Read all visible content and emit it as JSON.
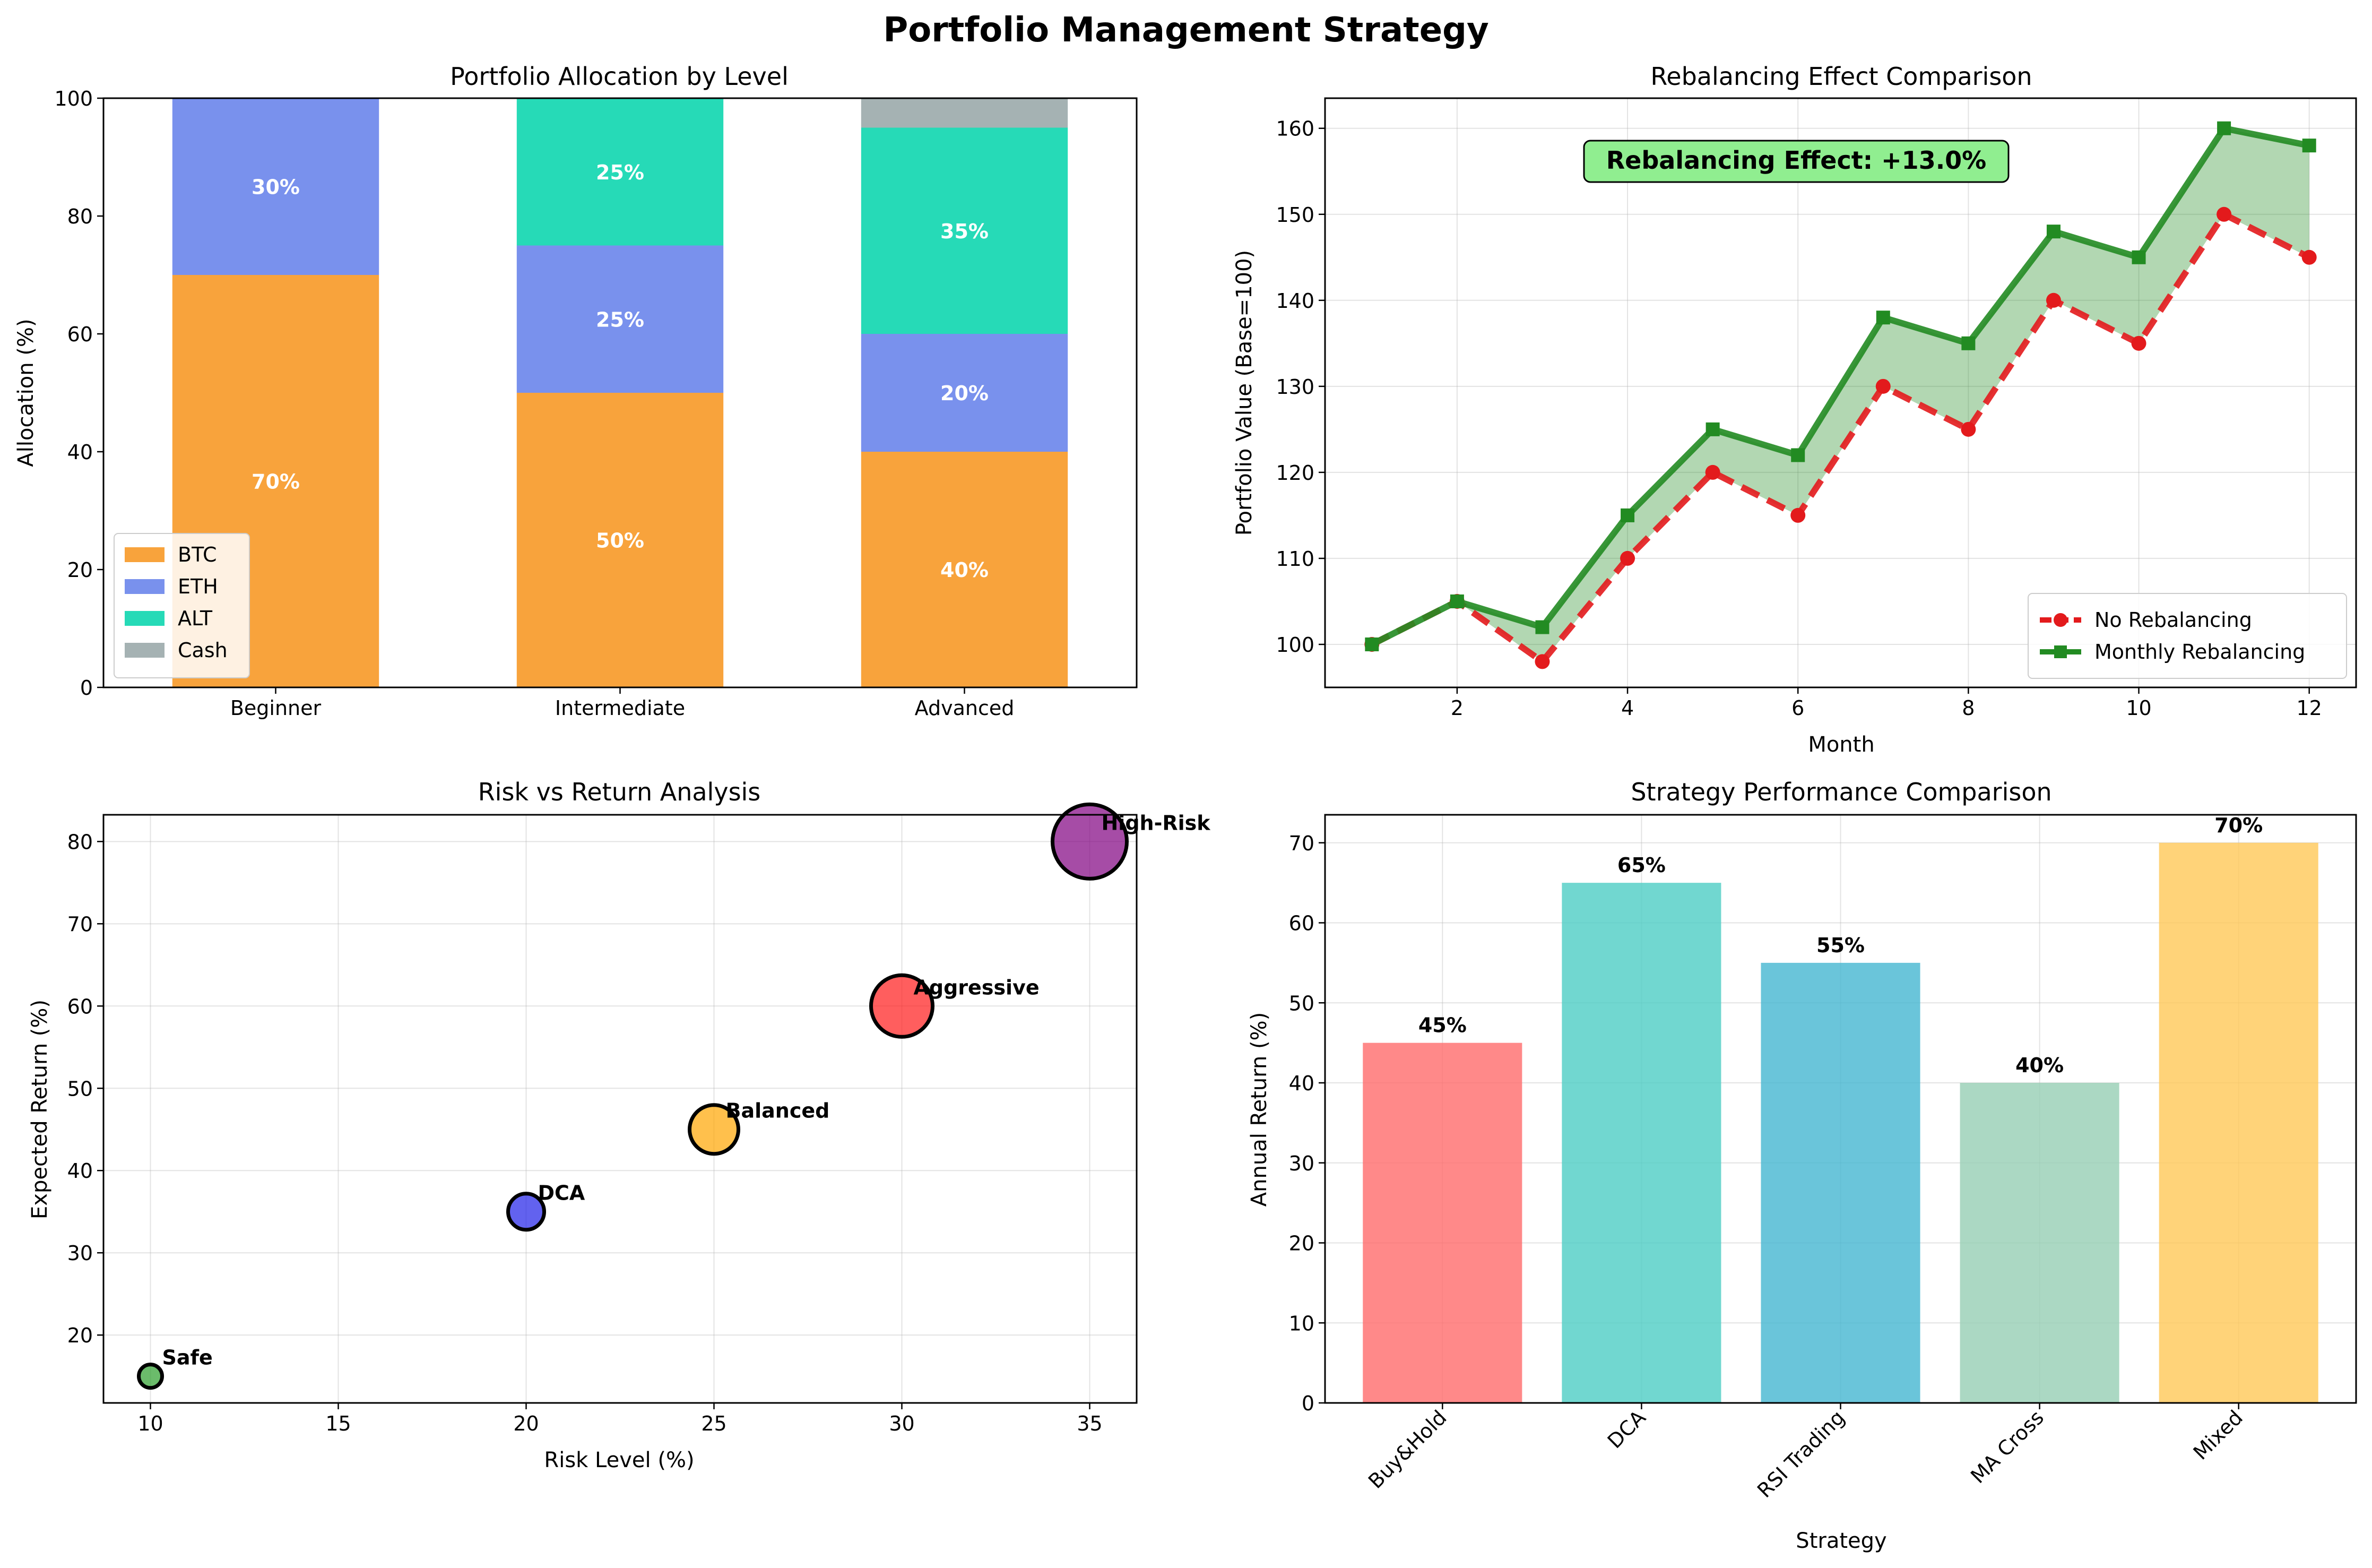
{
  "figure": {
    "title": "Portfolio Management Strategy"
  },
  "chart_data": [
    {
      "id": "allocation",
      "type": "bar",
      "stacked": true,
      "title": "Portfolio Allocation by Level",
      "xlabel": "",
      "ylabel": "Allocation (%)",
      "ylim": [
        0,
        100
      ],
      "yticks": [
        0,
        20,
        40,
        60,
        80,
        100
      ],
      "categories": [
        "Beginner",
        "Intermediate",
        "Advanced"
      ],
      "series": [
        {
          "name": "BTC",
          "color": "#f7931a",
          "values": [
            70,
            50,
            40
          ]
        },
        {
          "name": "ETH",
          "color": "#627eea",
          "values": [
            30,
            25,
            20
          ]
        },
        {
          "name": "ALT",
          "color": "#00d4aa",
          "values": [
            0,
            25,
            35
          ]
        },
        {
          "name": "Cash",
          "color": "#95a5a6",
          "values": [
            0,
            0,
            5
          ]
        }
      ],
      "data_labels": [
        {
          "category": "Beginner",
          "series": "BTC",
          "text": "70%"
        },
        {
          "category": "Beginner",
          "series": "ETH",
          "text": "30%"
        },
        {
          "category": "Intermediate",
          "series": "BTC",
          "text": "50%"
        },
        {
          "category": "Intermediate",
          "series": "ETH",
          "text": "25%"
        },
        {
          "category": "Intermediate",
          "series": "ALT",
          "text": "25%"
        },
        {
          "category": "Advanced",
          "series": "BTC",
          "text": "40%"
        },
        {
          "category": "Advanced",
          "series": "ETH",
          "text": "20%"
        },
        {
          "category": "Advanced",
          "series": "ALT",
          "text": "35%"
        }
      ],
      "legend": {
        "placement": "lower-left",
        "entries": [
          "BTC",
          "ETH",
          "ALT",
          "Cash"
        ]
      },
      "grid": false
    },
    {
      "id": "rebalancing",
      "type": "line",
      "title": "Rebalancing Effect Comparison",
      "xlabel": "Month",
      "ylabel": "Portfolio Value (Base=100)",
      "xlim": [
        0.45,
        12.55
      ],
      "ylim": [
        95,
        163.5
      ],
      "xticks": [
        2,
        4,
        6,
        8,
        10,
        12
      ],
      "yticks": [
        100,
        110,
        120,
        130,
        140,
        150,
        160
      ],
      "x": [
        1,
        2,
        3,
        4,
        5,
        6,
        7,
        8,
        9,
        10,
        11,
        12
      ],
      "series": [
        {
          "name": "No Rebalancing",
          "color": "#e31a1c",
          "style": "dashed",
          "marker": "circle",
          "values": [
            100,
            105,
            98,
            110,
            120,
            115,
            130,
            125,
            140,
            135,
            150,
            145
          ]
        },
        {
          "name": "Monthly Rebalancing",
          "color": "#228b22",
          "style": "solid",
          "marker": "square",
          "values": [
            100,
            105,
            102,
            115,
            125,
            122,
            138,
            135,
            148,
            145,
            160,
            158
          ]
        }
      ],
      "fill_between": {
        "color": "#228b22",
        "opacity": 0.35
      },
      "annotation": "Rebalancing Effect: +13.0%",
      "legend": {
        "placement": "lower-right",
        "entries": [
          "No Rebalancing",
          "Monthly Rebalancing"
        ]
      },
      "grid": true
    },
    {
      "id": "riskreturn",
      "type": "scatter",
      "title": "Risk vs Return Analysis",
      "xlabel": "Risk Level (%)",
      "ylabel": "Expected Return (%)",
      "xlim": [
        8.75,
        36.25
      ],
      "ylim": [
        11.75,
        83.25
      ],
      "xticks": [
        10,
        15,
        20,
        25,
        30,
        35
      ],
      "yticks": [
        20,
        30,
        40,
        50,
        60,
        70,
        80
      ],
      "points": [
        {
          "label": "Safe",
          "x": 10,
          "y": 15,
          "color": "#2ca02c",
          "size": 1
        },
        {
          "label": "DCA",
          "x": 20,
          "y": 35,
          "color": "#1f1fe8",
          "size": 2
        },
        {
          "label": "Balanced",
          "x": 25,
          "y": 45,
          "color": "#ffa500",
          "size": 3
        },
        {
          "label": "Aggressive",
          "x": 30,
          "y": 60,
          "color": "#ff1a1a",
          "size": 4
        },
        {
          "label": "High-Risk",
          "x": 35,
          "y": 80,
          "color": "#800080",
          "size": 5
        }
      ],
      "grid": true
    },
    {
      "id": "strategy",
      "type": "bar",
      "title": "Strategy Performance Comparison",
      "xlabel": "Strategy",
      "ylabel": "Annual Return (%)",
      "ylim": [
        0,
        73.5
      ],
      "yticks": [
        0,
        10,
        20,
        30,
        40,
        50,
        60,
        70
      ],
      "categories": [
        "Buy&Hold",
        "DCA",
        "RSI Trading",
        "MA Cross",
        "Mixed"
      ],
      "values": [
        45,
        65,
        55,
        40,
        70
      ],
      "colors": [
        "#ff6b6b",
        "#4ecdc4",
        "#45b7d1",
        "#96ceb4",
        "#ffc857"
      ],
      "data_labels": [
        "45%",
        "65%",
        "55%",
        "40%",
        "70%"
      ],
      "grid": true
    }
  ]
}
